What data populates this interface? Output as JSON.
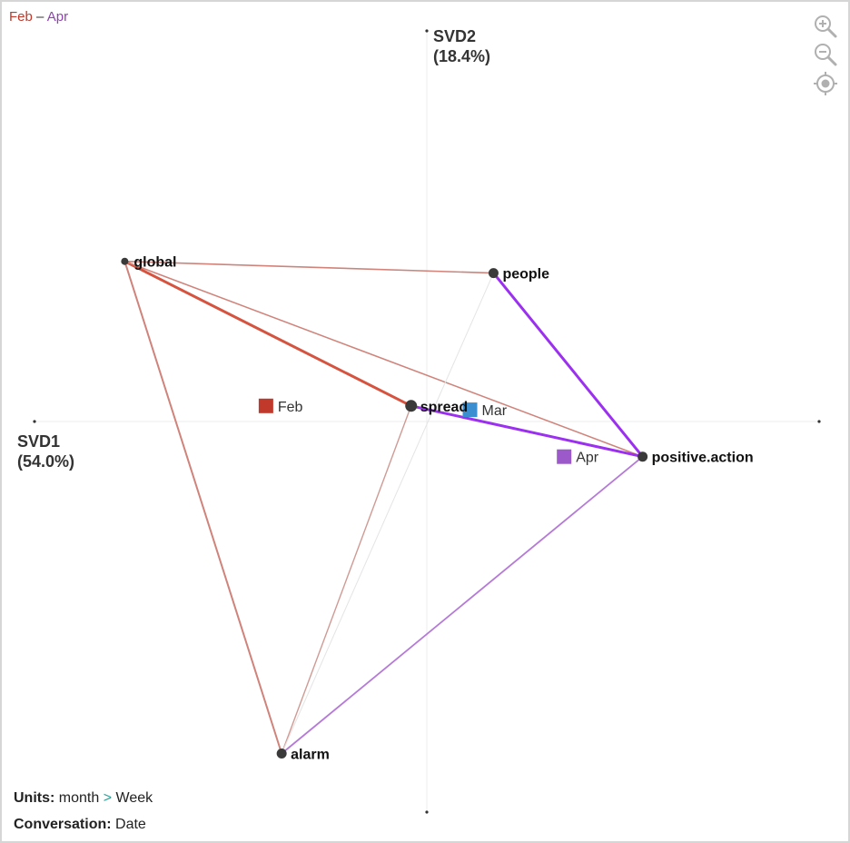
{
  "range": {
    "start": "Feb",
    "sep": " – ",
    "end": "Apr",
    "start_color": "#c0392b",
    "end_color": "#8e44ad"
  },
  "zoom_controls": {
    "zoom_in": "zoom-in-icon",
    "zoom_out": "zoom-out-icon",
    "recenter": "target-icon"
  },
  "footer": {
    "units_label": "Units:",
    "units_value": "month",
    "units_sep": ">",
    "units_value2": "Week",
    "conversation_label": "Conversation:",
    "conversation_value": "Date"
  },
  "chart_data": {
    "type": "scatter",
    "x_axis": {
      "name": "SVD1",
      "explained": "(54.0%)",
      "range": [
        -1.0,
        1.0
      ]
    },
    "y_axis": {
      "name": "SVD2",
      "explained": "(18.4%)",
      "range": [
        -1.0,
        1.0
      ]
    },
    "grid": false,
    "terms": [
      {
        "label": "global",
        "x": -0.77,
        "y": 0.41
      },
      {
        "label": "people",
        "x": 0.17,
        "y": 0.38
      },
      {
        "label": "spread",
        "x": -0.04,
        "y": 0.04
      },
      {
        "label": "positive.action",
        "x": 0.55,
        "y": -0.09
      },
      {
        "label": "alarm",
        "x": -0.37,
        "y": -0.85
      }
    ],
    "periods": [
      {
        "label": "Feb",
        "x": -0.41,
        "y": 0.04,
        "color": "#c0392b"
      },
      {
        "label": "Mar",
        "x": 0.11,
        "y": 0.03,
        "color": "#3b8fd0"
      },
      {
        "label": "Apr",
        "x": 0.35,
        "y": -0.09,
        "color": "#9b59c9"
      }
    ],
    "edges": [
      {
        "from": "global",
        "to": "people",
        "color": "#d0837a",
        "width": 1.6
      },
      {
        "from": "global",
        "to": "spread",
        "color": "#d5533f",
        "width": 3
      },
      {
        "from": "global",
        "to": "positive.action",
        "color": "#d0837a",
        "width": 1.6
      },
      {
        "from": "global",
        "to": "alarm",
        "color": "#d0837a",
        "width": 2
      },
      {
        "from": "alarm",
        "to": "spread",
        "color": "#d09a94",
        "width": 1.4
      },
      {
        "from": "alarm",
        "to": "people",
        "color": "#e4e4e4",
        "width": 1
      },
      {
        "from": "alarm",
        "to": "positive.action",
        "color": "#b57ad8",
        "width": 1.8
      },
      {
        "from": "spread",
        "to": "positive.action",
        "color": "#9b30f0",
        "width": 3
      },
      {
        "from": "people",
        "to": "positive.action",
        "color": "#9b30f0",
        "width": 3
      }
    ]
  }
}
